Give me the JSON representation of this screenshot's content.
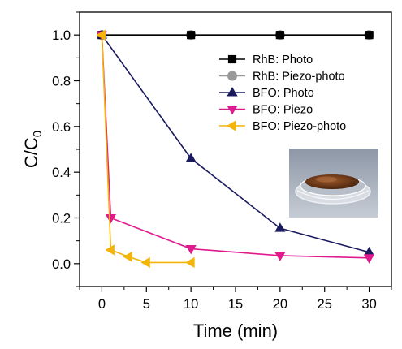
{
  "chart_data": {
    "type": "line",
    "xlabel": "Time (min)",
    "ylabel_base": "C/C",
    "ylabel_sub": "0",
    "xlim": [
      -2.5,
      32.5
    ],
    "ylim": [
      -0.1,
      1.1
    ],
    "xticks": [
      0,
      5,
      10,
      15,
      20,
      25,
      30
    ],
    "yticks": [
      0.0,
      0.2,
      0.4,
      0.6,
      0.8,
      1.0
    ],
    "xtick_labels": [
      "0",
      "5",
      "10",
      "15",
      "20",
      "25",
      "30"
    ],
    "ytick_labels": [
      "0.0",
      "0.2",
      "0.4",
      "0.6",
      "0.8",
      "1.0"
    ],
    "grid": false,
    "legend_position": "top-right",
    "series": [
      {
        "name": "RhB: Photo",
        "marker": "square",
        "color": "#000000",
        "x": [
          0,
          10,
          20,
          30
        ],
        "y": [
          1.0,
          1.0,
          1.0,
          1.0
        ]
      },
      {
        "name": "RhB: Piezo-photo",
        "marker": "circle",
        "color": "#9a9a9a",
        "x": [
          0,
          10,
          20,
          30
        ],
        "y": [
          1.0,
          1.0,
          1.0,
          1.0
        ]
      },
      {
        "name": "BFO: Photo",
        "marker": "triangle-up",
        "color": "#1a1a5e",
        "x": [
          0,
          10,
          20,
          30
        ],
        "y": [
          1.0,
          0.46,
          0.155,
          0.05
        ]
      },
      {
        "name": "BFO: Piezo",
        "marker": "triangle-down",
        "color": "#e0198c",
        "x": [
          0,
          1,
          10,
          20,
          30
        ],
        "y": [
          1.0,
          0.2,
          0.065,
          0.035,
          0.025
        ]
      },
      {
        "name": "BFO: Piezo-photo",
        "marker": "triangle-left",
        "color": "#f5b40a",
        "x": [
          0,
          1,
          3,
          5,
          10
        ],
        "y": [
          1.0,
          0.06,
          0.03,
          0.005,
          0.005
        ]
      }
    ],
    "inset": "photo of a glass petri dish containing brown BFO powder"
  }
}
